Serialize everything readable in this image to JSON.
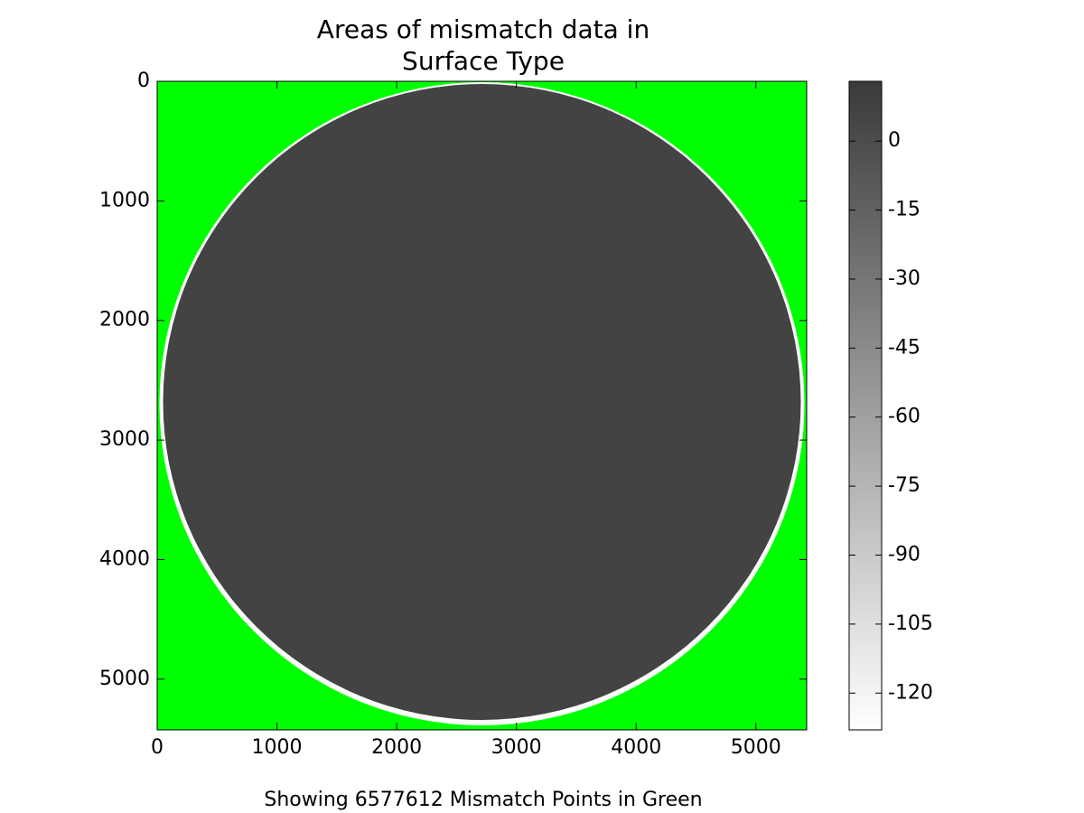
{
  "chart_data": {
    "type": "image",
    "title": [
      "Areas of mismatch data in",
      "Surface Type"
    ],
    "footer": "Showing 6577612 Mismatch Points in Green",
    "xlim": [
      0,
      5424
    ],
    "ylim": [
      5424,
      0
    ],
    "xticks": [
      0,
      1000,
      2000,
      3000,
      4000,
      5000
    ],
    "yticks": [
      0,
      1000,
      2000,
      3000,
      4000,
      5000
    ],
    "mismatch_color": "#00ff00",
    "colorbar": {
      "lim": [
        -128,
        13
      ],
      "ticks": [
        0,
        -15,
        -30,
        -45,
        -60,
        -75,
        -90,
        -105,
        -120
      ],
      "colors": [
        "#ffffff",
        "#3a3a3a"
      ]
    }
  }
}
